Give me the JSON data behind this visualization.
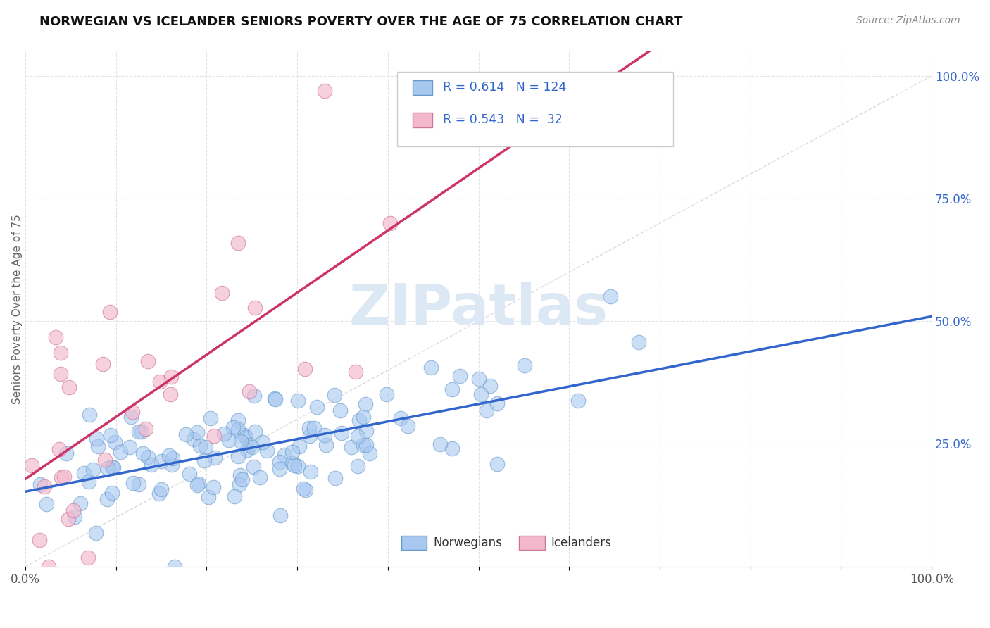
{
  "title": "NORWEGIAN VS ICELANDER SENIORS POVERTY OVER THE AGE OF 75 CORRELATION CHART",
  "source": "Source: ZipAtlas.com",
  "ylabel": "Seniors Poverty Over the Age of 75",
  "norwegian_R": 0.614,
  "norwegian_N": 124,
  "icelander_R": 0.543,
  "icelander_N": 32,
  "blue_face_color": "#a8c8f0",
  "blue_edge_color": "#6699cc",
  "blue_line_color": "#3366cc",
  "pink_face_color": "#f4b8cc",
  "pink_edge_color": "#cc7799",
  "pink_line_color": "#cc3366",
  "legend_text_color": "#3366cc",
  "title_color": "#111111",
  "source_color": "#888888",
  "right_tick_color": "#3366cc",
  "ylabel_color": "#666666",
  "background_color": "#ffffff",
  "grid_color": "#dddddd",
  "diag_color": "#cccccc",
  "watermark_color": "#dde8f5",
  "xmin": 0.0,
  "xmax": 1.0,
  "ymin": 0.0,
  "ymax": 1.05,
  "norw_seed": 12,
  "icel_seed": 99
}
